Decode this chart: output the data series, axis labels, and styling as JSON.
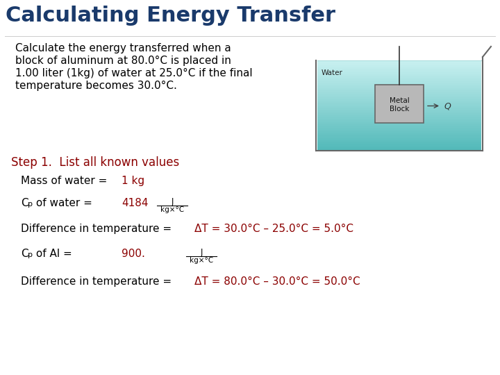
{
  "title": "Calculating Energy Transfer",
  "title_color": "#1a3a6b",
  "title_fontsize": 22,
  "background_color": "#ffffff",
  "body_text_color": "#000000",
  "red_color": "#8b0000",
  "problem_text_line1": "Calculate the energy transferred when a",
  "problem_text_line2": "block of aluminum at 80.0°C is placed in",
  "problem_text_line3": "1.00 liter (1kg) of water at 25.0°C if the final",
  "problem_text_line4": "temperature becomes 30.0°C.",
  "step1_text": "Step 1.  List all known values",
  "mass_label": "Mass of water = ",
  "mass_value": "1 kg",
  "diff_temp_water_label": "Difference in temperature = ",
  "diff_temp_water_value": "ΔT = 30.0°C – 25.0°C = 5.0°C",
  "cp_al_value": "900.",
  "diff_temp_al_label": "Difference in temperature = ",
  "diff_temp_al_value": "ΔT = 80.0°C – 30.0°C = 50.0°C",
  "body_fontsize": 11,
  "step_fontsize": 12,
  "value_fontsize": 11,
  "units_fontsize": 7.5,
  "water_color_top": "#b0eeee",
  "water_color_bot": "#00cccc"
}
